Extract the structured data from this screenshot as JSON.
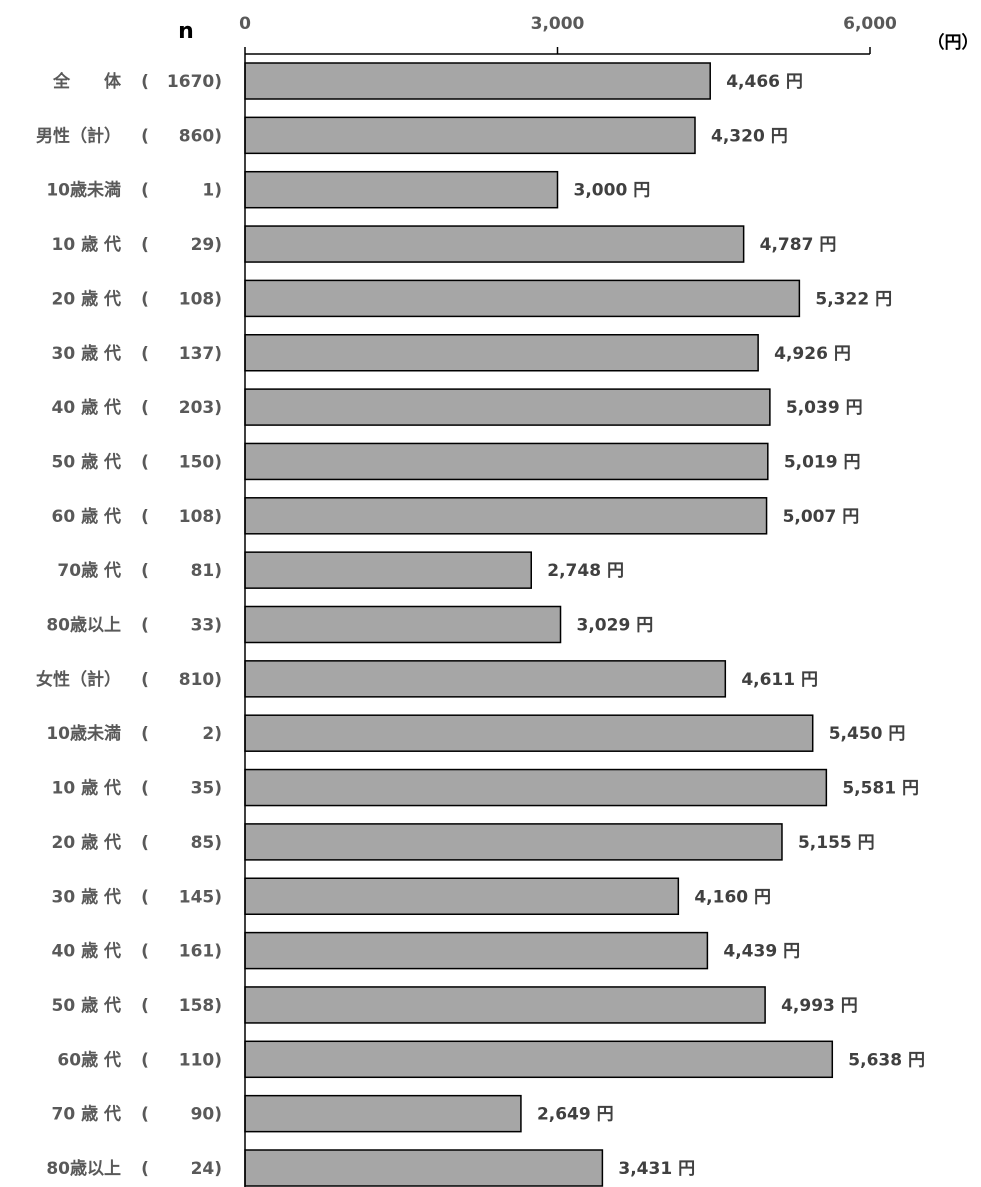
{
  "chart_data": {
    "type": "bar",
    "orientation": "horizontal",
    "n_header": "n",
    "unit_label": "（円）",
    "value_suffix": " 円",
    "xlim": [
      0,
      6000
    ],
    "xticks": [
      "0",
      "3,000",
      "6,000"
    ],
    "xtick_values": [
      0,
      3000,
      6000
    ],
    "colors": {
      "bar": "#a6a6a6",
      "bar_border": "#000000",
      "axis": "#000000",
      "text": "#595959"
    },
    "categories": [
      "全　　体",
      "男性（計）",
      "10歳未満",
      "10 歳 代",
      "20 歳 代",
      "30 歳 代",
      "40 歳 代",
      "50 歳 代",
      "60 歳 代",
      "70歳 代",
      "80歳以上",
      "女性（計）",
      "10歳未満",
      "10 歳 代",
      "20 歳 代",
      "30 歳 代",
      "40 歳 代",
      "50 歳 代",
      "60歳 代",
      "70 歳 代",
      "80歳以上"
    ],
    "n_values": [
      "1670",
      "860",
      "1",
      "29",
      "108",
      "137",
      "203",
      "150",
      "108",
      "81",
      "33",
      "810",
      "2",
      "35",
      "85",
      "145",
      "161",
      "158",
      "110",
      "90",
      "24"
    ],
    "values": [
      4466,
      4320,
      3000,
      4787,
      5322,
      4926,
      5039,
      5019,
      5007,
      2748,
      3029,
      4611,
      5450,
      5581,
      5155,
      4160,
      4439,
      4993,
      5638,
      2649,
      3431
    ],
    "value_labels": [
      "4,466 円",
      "4,320 円",
      "3,000 円",
      "4,787 円",
      "5,322 円",
      "4,926 円",
      "5,039 円",
      "5,019 円",
      "5,007 円",
      "2,748 円",
      "3,029 円",
      "4,611 円",
      "5,450 円",
      "5,581 円",
      "5,155 円",
      "4,160 円",
      "4,439 円",
      "4,993 円",
      "5,638 円",
      "2,649 円",
      "3,431 円"
    ]
  }
}
